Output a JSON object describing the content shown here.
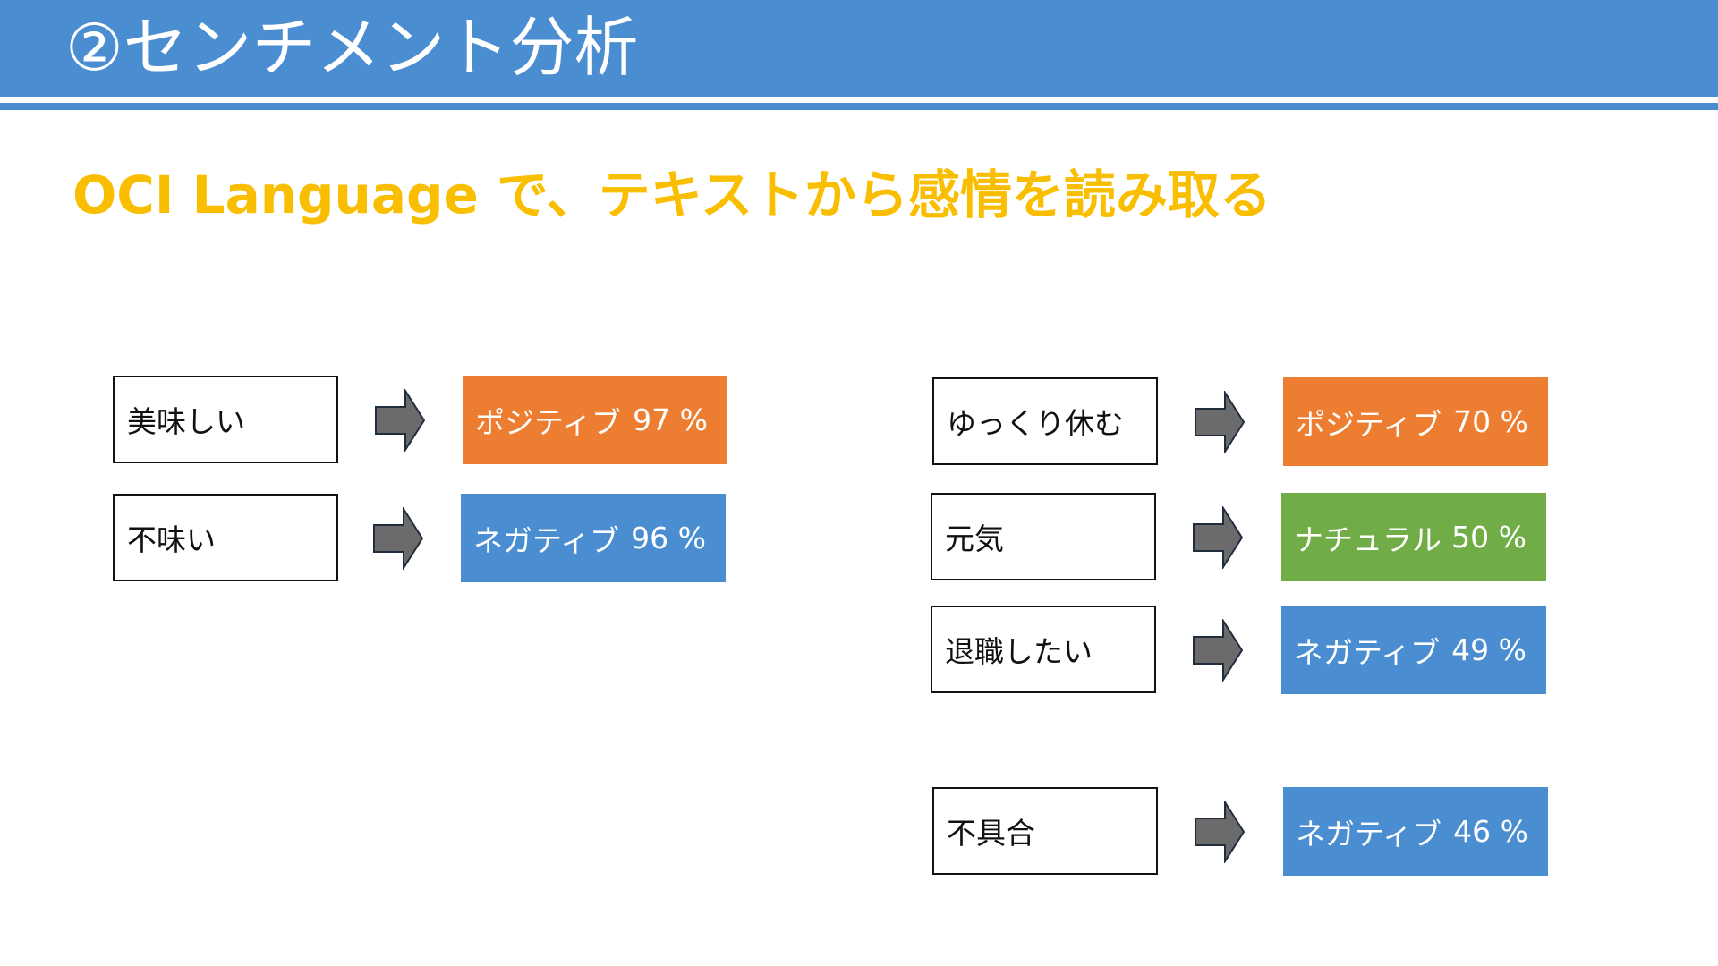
{
  "header": {
    "title": "②センチメント分析"
  },
  "subtitle": "OCI Language で、テキストから感情を読み取る",
  "colors": {
    "header": "#4A8ED1",
    "subtitle": "#F9BE00",
    "positive": "#ED7D31",
    "negative": "#4A8ED1",
    "neutral": "#70AD47",
    "arrow": "#6B6B6B"
  },
  "rows": [
    {
      "text": "美味しい",
      "label": "ポジティブ",
      "score": "97 %",
      "sentiment": "positive"
    },
    {
      "text": "不味い",
      "label": "ネガティブ",
      "score": "96 %",
      "sentiment": "negative"
    },
    {
      "text": "ゆっくり休む",
      "label": "ポジティブ",
      "score": "70 %",
      "sentiment": "positive"
    },
    {
      "text": "元気",
      "label": "ナチュラル",
      "score": "50 %",
      "sentiment": "neutral"
    },
    {
      "text": "退職したい",
      "label": "ネガティブ",
      "score": "49 %",
      "sentiment": "negative"
    },
    {
      "text": "不具合",
      "label": "ネガティブ",
      "score": "46 %",
      "sentiment": "negative"
    }
  ]
}
